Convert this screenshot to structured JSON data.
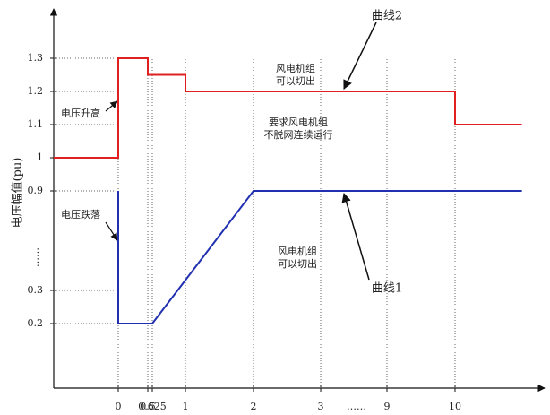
{
  "chart_data": {
    "type": "line",
    "y_label": "电压幅值(pu)",
    "xlim": [
      -1,
      11.3
    ],
    "ylim": [
      0,
      1.4
    ],
    "xticks": [
      0,
      0.5,
      0.625,
      1,
      2,
      3,
      9,
      10
    ],
    "yticks": [
      0.2,
      0.3,
      0.9,
      1.0,
      1.1,
      1.2,
      1.3
    ],
    "axis_break_marks": {
      "x": "……",
      "y": "……"
    },
    "grid": "dotted",
    "series": [
      {
        "name": "曲线2",
        "color": "#e02020",
        "x": [
          -1,
          0,
          0,
          0.5,
          0.5,
          1,
          1,
          10,
          10,
          11
        ],
        "values": [
          1.0,
          1.0,
          1.3,
          1.3,
          1.25,
          1.25,
          1.2,
          1.2,
          1.1,
          1.1
        ]
      },
      {
        "name": "曲线1",
        "color": "#2030b0",
        "x": [
          0,
          0,
          0.625,
          2,
          11
        ],
        "values": [
          0.9,
          0.2,
          0.2,
          0.9,
          0.9
        ]
      }
    ],
    "annotations": [
      {
        "lines": [
          "风电机组",
          "可以切出"
        ]
      },
      {
        "lines": [
          "要求风电机组",
          "不脱网连续运行"
        ]
      },
      {
        "lines": [
          "风电机组",
          "可以切出"
        ]
      },
      {
        "lines": [
          "电压升高"
        ]
      },
      {
        "lines": [
          "电压跌落"
        ]
      }
    ]
  }
}
